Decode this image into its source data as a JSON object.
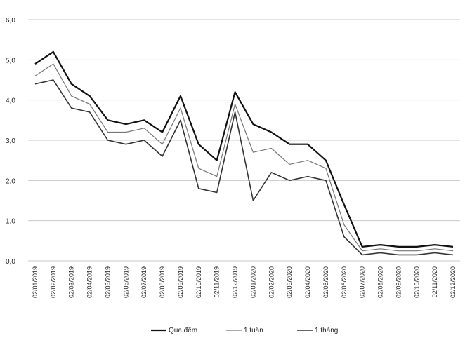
{
  "chart_data": {
    "type": "line",
    "title": "",
    "xlabel": "",
    "ylabel": "",
    "ylim": [
      0,
      6
    ],
    "y_ticks": [
      "0,0",
      "1,0",
      "2,0",
      "3,0",
      "4,0",
      "5,0",
      "6,0"
    ],
    "y_tick_values": [
      0,
      1,
      2,
      3,
      4,
      5,
      6
    ],
    "grid": "horizontal",
    "legend_position": "bottom",
    "x_ticks": [
      "02/01/2019",
      "02/02/2019",
      "02/03/2019",
      "02/04/2019",
      "02/05/2019",
      "02/06/2019",
      "02/07/2019",
      "02/08/2019",
      "02/09/2019",
      "02/10/2019",
      "02/11/2019",
      "02/12/2019",
      "02/01/2020",
      "02/02/2020",
      "02/03/2020",
      "02/04/2020",
      "02/05/2020",
      "02/06/2020",
      "02/07/2020",
      "02/08/2020",
      "02/09/2020",
      "02/10/2020",
      "02/11/2020",
      "02/12/2020"
    ],
    "x": [
      "02/01/2019",
      "02/02/2019",
      "02/03/2019",
      "02/04/2019",
      "02/05/2019",
      "02/06/2019",
      "02/07/2019",
      "02/08/2019",
      "02/09/2019",
      "02/10/2019",
      "02/11/2019",
      "02/12/2019",
      "02/01/2020",
      "02/02/2020",
      "02/03/2020",
      "02/04/2020",
      "02/05/2020",
      "02/06/2020",
      "02/07/2020",
      "02/08/2020",
      "02/09/2020",
      "02/10/2020",
      "02/11/2020",
      "02/12/2020"
    ],
    "series": [
      {
        "name": "Qua đêm",
        "color": "#111111",
        "values": [
          4.9,
          5.2,
          4.4,
          4.1,
          3.5,
          3.4,
          3.5,
          3.2,
          4.1,
          2.9,
          2.5,
          4.2,
          3.4,
          3.2,
          2.9,
          2.9,
          2.5,
          1.4,
          0.35,
          0.4,
          0.35,
          0.35,
          0.4,
          0.35
        ]
      },
      {
        "name": "1 tuần",
        "color": "#777777",
        "values": [
          4.6,
          4.9,
          4.1,
          3.9,
          3.2,
          3.2,
          3.3,
          2.9,
          3.8,
          2.3,
          2.1,
          3.9,
          2.7,
          2.8,
          2.4,
          2.5,
          2.3,
          0.9,
          0.25,
          0.3,
          0.25,
          0.25,
          0.3,
          0.25
        ]
      },
      {
        "name": "1 tháng",
        "color": "#333333",
        "values": [
          4.4,
          4.5,
          3.8,
          3.7,
          3.0,
          2.9,
          3.0,
          2.6,
          3.5,
          1.8,
          1.7,
          3.7,
          1.5,
          2.2,
          2.0,
          2.1,
          2.0,
          0.6,
          0.15,
          0.2,
          0.15,
          0.15,
          0.2,
          0.15
        ]
      }
    ]
  }
}
